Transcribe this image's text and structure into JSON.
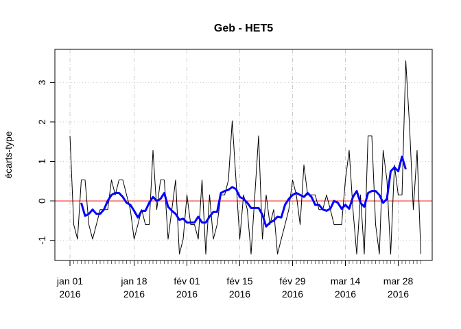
{
  "chart_data": {
    "type": "line",
    "title": "Geb - HET5",
    "y_label": "écarts-type",
    "x": [
      "2016-01-01",
      "2016-01-02",
      "2016-01-03",
      "2016-01-04",
      "2016-01-05",
      "2016-01-06",
      "2016-01-07",
      "2016-01-08",
      "2016-01-09",
      "2016-01-10",
      "2016-01-11",
      "2016-01-12",
      "2016-01-13",
      "2016-01-14",
      "2016-01-15",
      "2016-01-16",
      "2016-01-17",
      "2016-01-18",
      "2016-01-19",
      "2016-01-20",
      "2016-01-21",
      "2016-01-22",
      "2016-01-23",
      "2016-01-24",
      "2016-01-25",
      "2016-01-26",
      "2016-01-27",
      "2016-01-28",
      "2016-01-29",
      "2016-01-30",
      "2016-01-31",
      "2016-02-01",
      "2016-02-02",
      "2016-02-03",
      "2016-02-04",
      "2016-02-05",
      "2016-02-06",
      "2016-02-07",
      "2016-02-08",
      "2016-02-09",
      "2016-02-10",
      "2016-02-11",
      "2016-02-12",
      "2016-02-13",
      "2016-02-14",
      "2016-02-15",
      "2016-02-16",
      "2016-02-17",
      "2016-02-18",
      "2016-02-19",
      "2016-02-20",
      "2016-02-21",
      "2016-02-22",
      "2016-02-23",
      "2016-02-24",
      "2016-02-25",
      "2016-02-26",
      "2016-02-27",
      "2016-02-28",
      "2016-02-29",
      "2016-03-01",
      "2016-03-02",
      "2016-03-03",
      "2016-03-04",
      "2016-03-05",
      "2016-03-06",
      "2016-03-07",
      "2016-03-08",
      "2016-03-09",
      "2016-03-10",
      "2016-03-11",
      "2016-03-12",
      "2016-03-13",
      "2016-03-14",
      "2016-03-15",
      "2016-03-16",
      "2016-03-17",
      "2016-03-18",
      "2016-03-19",
      "2016-03-20",
      "2016-03-21",
      "2016-03-22",
      "2016-03-23",
      "2016-03-24",
      "2016-03-25",
      "2016-03-26",
      "2016-03-27",
      "2016-03-28",
      "2016-03-29",
      "2016-03-30",
      "2016-03-31",
      "2016-04-01",
      "2016-04-02",
      "2016-04-03"
    ],
    "series": [
      {
        "color": "#000000",
        "width": 1,
        "values": [
          1.65,
          -0.6,
          -0.97,
          0.53,
          0.53,
          -0.6,
          -0.97,
          -0.6,
          -0.22,
          -0.22,
          -0.22,
          0.53,
          0.15,
          0.53,
          0.53,
          0.15,
          -0.22,
          -0.97,
          -0.6,
          -0.22,
          -0.6,
          -0.6,
          1.28,
          -0.22,
          0.53,
          0.53,
          -0.97,
          -0.22,
          0.53,
          -1.35,
          -0.97,
          0.15,
          -0.6,
          -0.6,
          -0.97,
          0.53,
          -1.35,
          0.15,
          -0.97,
          -0.6,
          0.15,
          0.15,
          0.53,
          2.03,
          0.53,
          -0.97,
          0.15,
          -0.22,
          -1.35,
          0.15,
          1.65,
          -0.97,
          0.15,
          -0.6,
          -0.22,
          -1.35,
          -0.97,
          -0.6,
          -0.22,
          0.53,
          0.15,
          -0.6,
          0.91,
          0.15,
          0.15,
          0.15,
          -0.22,
          -0.22,
          0.15,
          -0.22,
          -0.6,
          -0.6,
          -0.6,
          0.53,
          1.28,
          -0.22,
          -1.35,
          0.15,
          -1.35,
          1.65,
          1.65,
          -0.6,
          -1.35,
          1.28,
          0.53,
          -1.35,
          0.91,
          0.15,
          0.15,
          3.55,
          1.9,
          -0.22,
          1.28,
          -1.35
        ]
      },
      {
        "color": "#0000ff",
        "width": 3,
        "values": [
          null,
          null,
          null,
          -0.05,
          -0.38,
          -0.33,
          -0.22,
          -0.33,
          -0.33,
          -0.22,
          0.0,
          0.15,
          0.2,
          0.2,
          0.1,
          -0.05,
          -0.1,
          -0.25,
          -0.42,
          -0.25,
          -0.25,
          -0.05,
          0.1,
          0.0,
          0.05,
          0.2,
          -0.15,
          -0.25,
          -0.33,
          -0.48,
          -0.45,
          -0.55,
          -0.55,
          -0.55,
          -0.4,
          -0.55,
          -0.55,
          -0.4,
          -0.28,
          -0.28,
          0.2,
          0.25,
          0.28,
          0.35,
          0.3,
          0.1,
          0.05,
          -0.05,
          -0.18,
          -0.18,
          -0.18,
          -0.35,
          -0.65,
          -0.55,
          -0.5,
          -0.4,
          -0.42,
          -0.1,
          0.05,
          0.15,
          0.2,
          0.15,
          0.1,
          0.2,
          0.1,
          -0.1,
          -0.1,
          -0.22,
          -0.25,
          -0.2,
          0.0,
          -0.05,
          -0.2,
          -0.1,
          -0.2,
          0.1,
          0.25,
          -0.05,
          -0.15,
          0.2,
          0.25,
          0.25,
          0.15,
          -0.05,
          0.05,
          0.75,
          0.85,
          0.75,
          1.12,
          0.8,
          null,
          null,
          null,
          null
        ]
      }
    ],
    "reference_line": {
      "value": 0,
      "color": "#ff0000"
    },
    "xlim": [
      "2015-12-28",
      "2016-04-06"
    ],
    "xticks": [
      {
        "value": "2016-01-01",
        "label": "jan 01\n2016"
      },
      {
        "value": "2016-01-18",
        "label": "jan 18\n2016"
      },
      {
        "value": "2016-02-01",
        "label": "fév 01\n2016"
      },
      {
        "value": "2016-02-15",
        "label": "fév 15\n2016"
      },
      {
        "value": "2016-02-29",
        "label": "fév 29\n2016"
      },
      {
        "value": "2016-03-14",
        "label": "mar 14\n2016"
      },
      {
        "value": "2016-03-28",
        "label": "mar 28\n2016"
      }
    ],
    "ylim": [
      -1.51,
      3.84
    ],
    "yticks": [
      -1,
      0,
      1,
      2,
      3
    ],
    "grid": true
  }
}
